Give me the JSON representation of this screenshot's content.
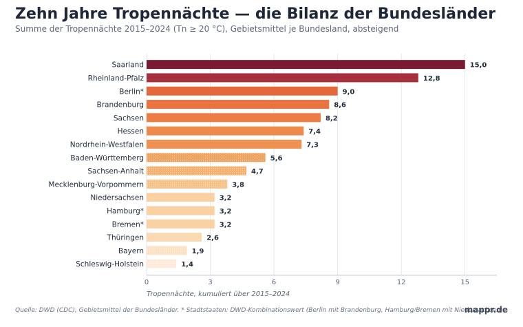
{
  "title": "Zehn Jahre Tropennächte — die Bilanz der Bundesländer",
  "subtitle": "Summe der Tropennächte 2015–2024 (Tn ≥ 20 °C), Gebietsmittel je Bundesland, absteigend",
  "footer": "Quelle: DWD (CDC), Gebietsmittel der Bundesländer. * Stadtstaaten: DWD-Kombinationswert (Berlin mit Brandenburg, Hamburg/Bremen mit Niedersachsen).",
  "brand": "mappr.de",
  "chart_data": {
    "type": "bar",
    "orientation": "horizontal",
    "categories": [
      "Saarland",
      "Rheinland-Pfalz",
      "Berlin*",
      "Brandenburg",
      "Sachsen",
      "Hessen",
      "Nordrhein-Westfalen",
      "Baden-Württemberg",
      "Sachsen-Anhalt",
      "Mecklenburg-Vorpommern",
      "Niedersachsen",
      "Hamburg*",
      "Bremen*",
      "Thüringen",
      "Bayern",
      "Schleswig-Holstein"
    ],
    "values": [
      15.0,
      12.8,
      9.0,
      8.6,
      8.2,
      7.4,
      7.3,
      5.6,
      4.7,
      3.8,
      3.2,
      3.2,
      3.2,
      2.6,
      1.9,
      1.4
    ],
    "value_labels": [
      "15,0",
      "12,8",
      "9,0",
      "8,6",
      "8,2",
      "7,4",
      "7,3",
      "5,6",
      "4,7",
      "3,8",
      "3,2",
      "3,2",
      "3,2",
      "2,6",
      "1,9",
      "1,4"
    ],
    "colors": [
      "#7a1a32",
      "#a7303f",
      "#e5683c",
      "#ea7440",
      "#ec7e45",
      "#ee8a4c",
      "#ef9150",
      "#f2a25f",
      "#f5b06d",
      "#f8c286",
      "#fad1a3",
      "#fad1a3",
      "#fad1a3",
      "#fbd9b3",
      "#fce2c4",
      "#fdeada"
    ],
    "patterns": [
      "solid",
      "solid",
      "solid",
      "solid",
      "solid",
      "solid",
      "solid",
      "dotted",
      "dotted",
      "dotted",
      "solid",
      "solid",
      "solid",
      "solid",
      "dotted",
      "dotted"
    ],
    "xlabel": "Tropennächte, kumuliert über 2015–2024",
    "xlim": [
      0,
      16.5
    ],
    "xticks": [
      0,
      3,
      6,
      9,
      12,
      15
    ],
    "grid": true
  }
}
